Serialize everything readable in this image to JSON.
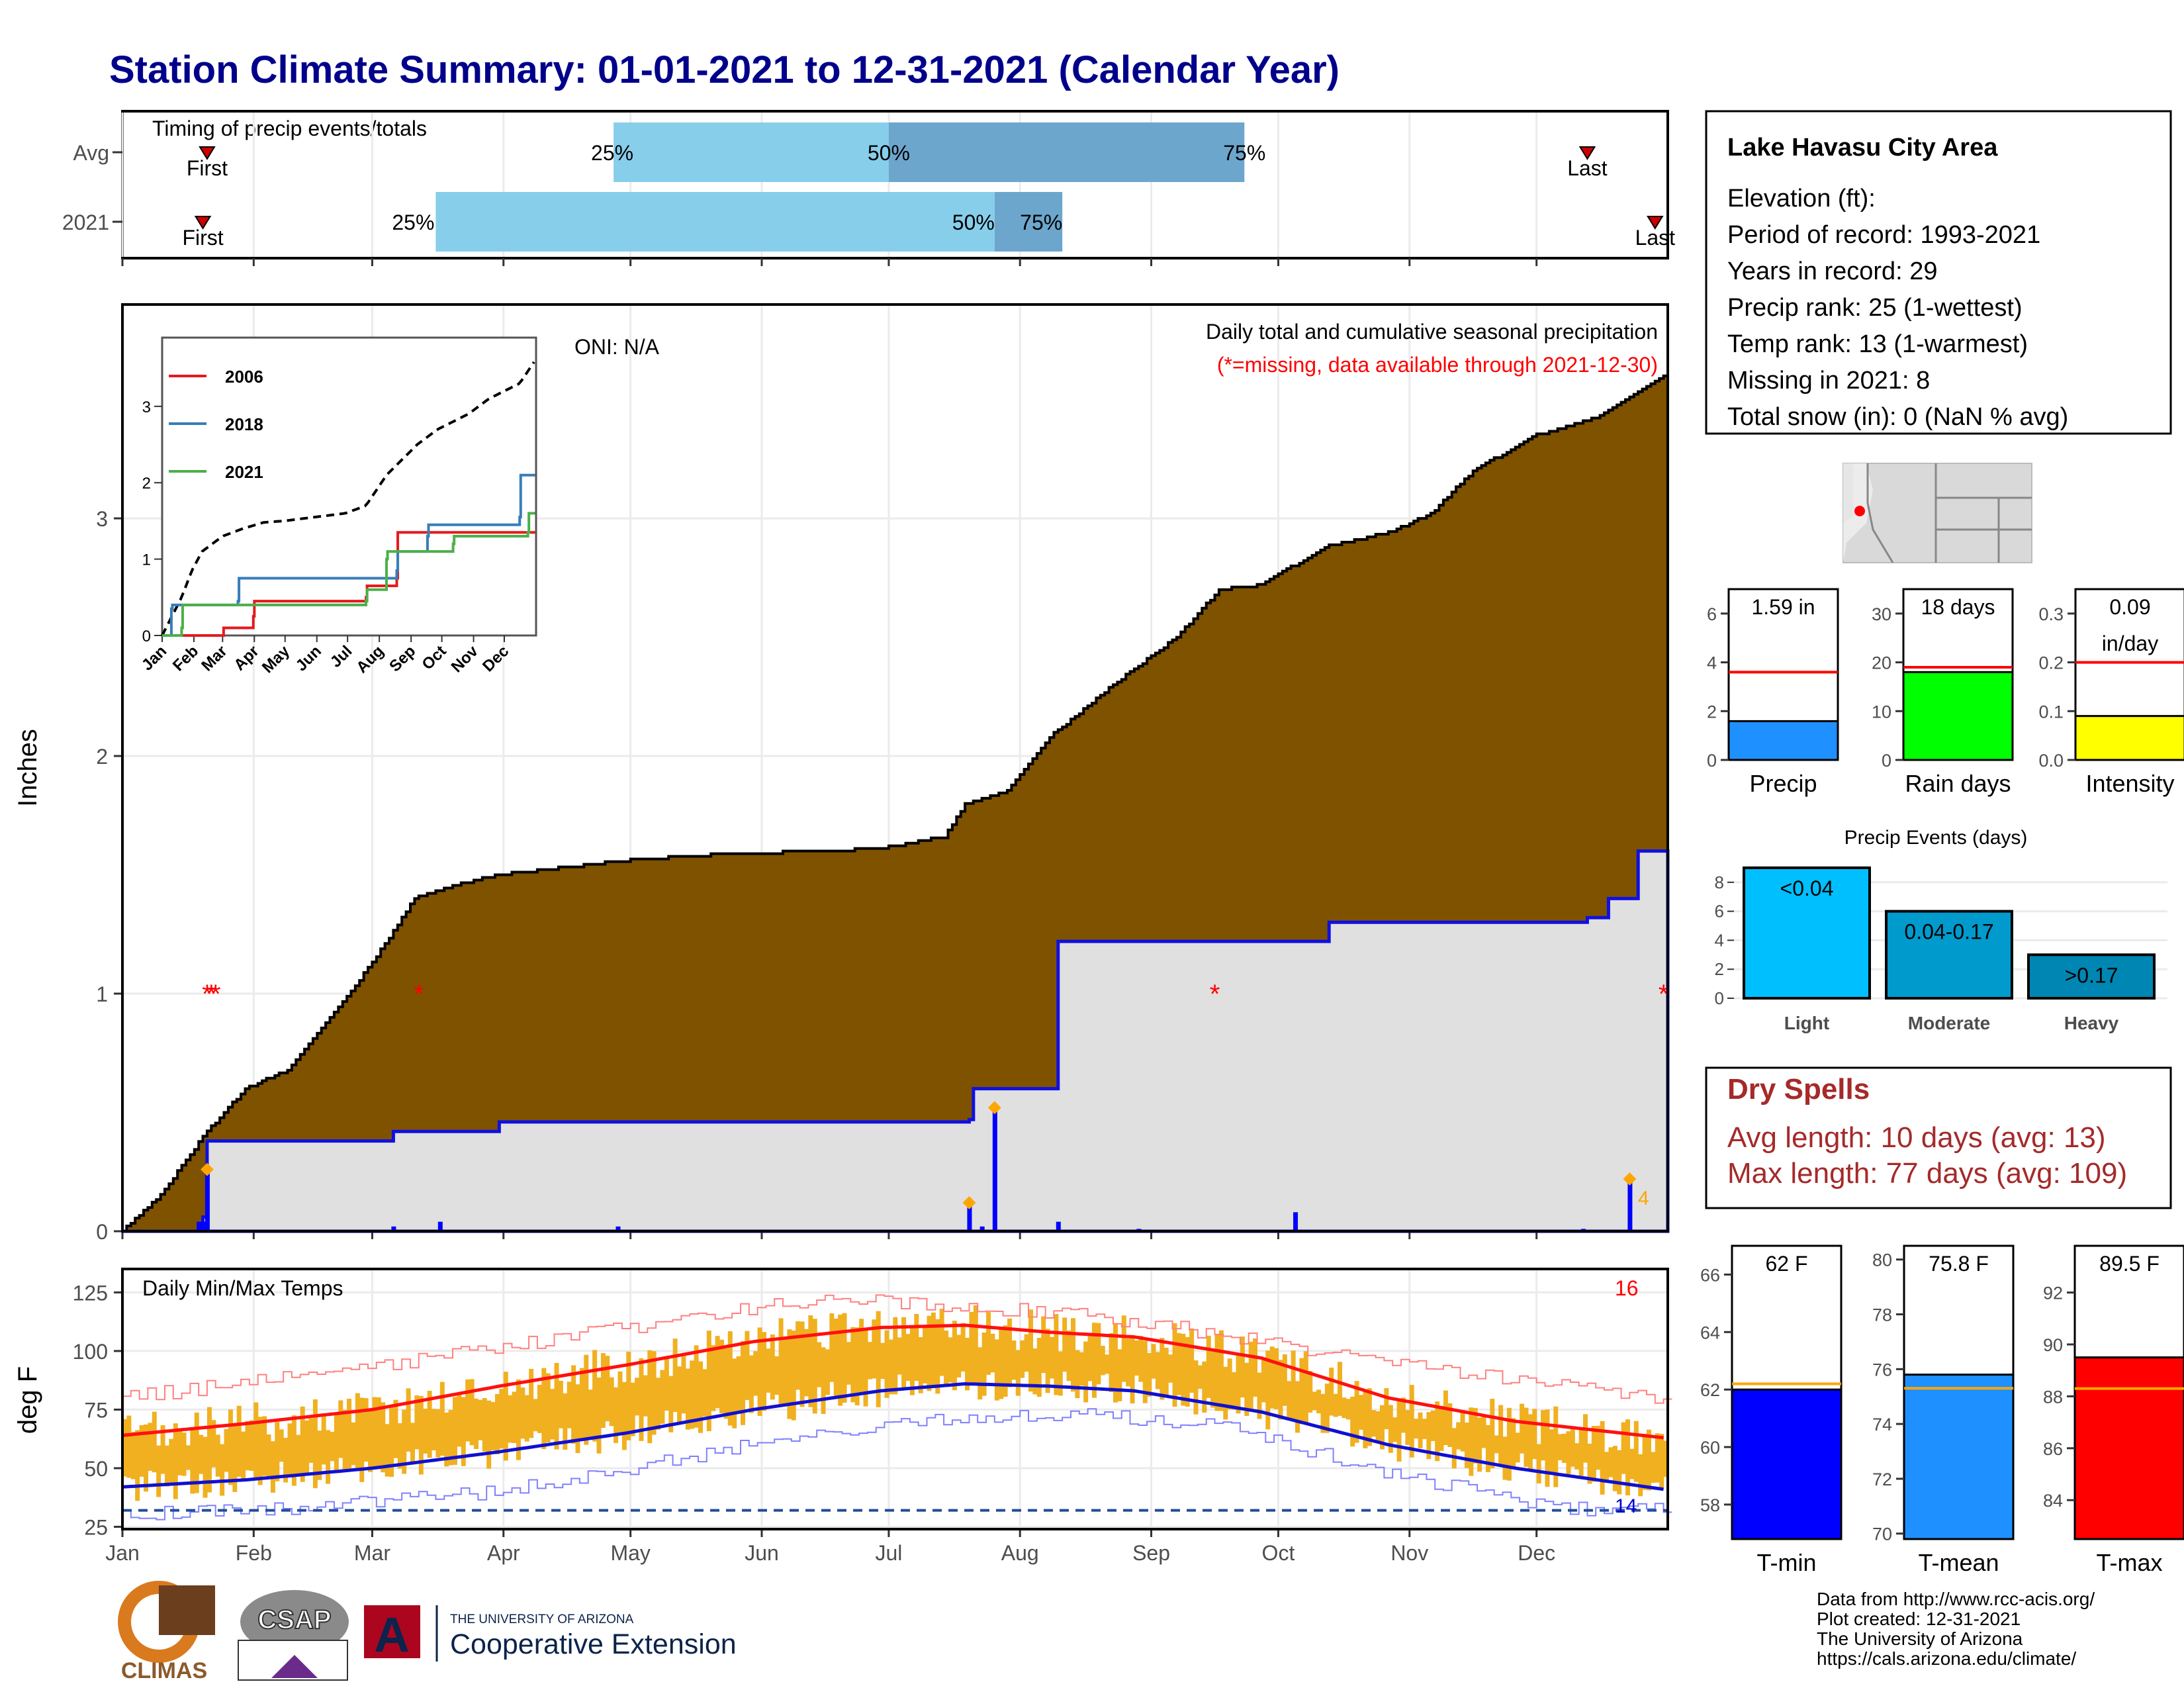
{
  "title": "Station Climate Summary: 01-01-2021 to 12-31-2021 (Calendar Year)",
  "station": {
    "name": "Lake Havasu City Area",
    "lines": [
      "Elevation (ft):",
      "Period of record: 1993-2021",
      "Years in record: 29",
      "Precip rank: 25 (1-wettest)",
      "Temp rank: 13 (1-warmest)",
      "Missing in 2021: 8",
      "Total snow (in): 0 (NaN % avg)"
    ]
  },
  "dry_spells": {
    "title": "Dry Spells",
    "avg": "Avg length: 10 days (avg: 13)",
    "max": "Max length: 77 days (avg: 109)"
  },
  "credits": [
    "Data from http://www.rcc-acis.org/",
    "Plot created: 12-31-2021",
    "The University of Arizona",
    "https://cals.arizona.edu/climate/"
  ],
  "logos": {
    "climas": "CLIMAS",
    "csap": "CSAP",
    "ua_small": "THE UNIVERSITY OF ARIZONA",
    "ua_big": "Cooperative Extension"
  },
  "colors": {
    "precip_fill": "#7F5200",
    "cum_line": "#1010E0",
    "cum_fill": "#E0E0E0",
    "temp_bar": "#F0B020",
    "tmax_line": "#FF1010",
    "tmin_line": "#1010D0"
  },
  "chart_data": [
    {
      "type": "bar",
      "panel": "timing",
      "title": "Timing of precip events/totals",
      "categories": [
        "Avg",
        "2021"
      ],
      "rows": [
        {
          "label": "Avg",
          "first": "Jan 21",
          "p25": "Apr 27",
          "p50": "Jul 1",
          "p75": "Sep 23",
          "last": "Dec 13"
        },
        {
          "label": "2021",
          "first": "Jan 20",
          "p25": "Mar 16",
          "p50": "Jul 26",
          "p75": "Aug 11",
          "last": "Dec 29"
        }
      ],
      "labels": {
        "first": "First",
        "last": "Last",
        "p25": "25%",
        "p50": "50%",
        "p75": "75%"
      }
    },
    {
      "type": "area",
      "panel": "precip",
      "ylabel": "Inches",
      "ylim": [
        0,
        3.9
      ],
      "yticks": [
        0,
        1,
        2,
        3
      ],
      "oni": "ONI: N/A",
      "subtitle": "Daily total and cumulative seasonal precipitation",
      "note": "(*=missing, data available through 2021-12-30)",
      "xticks": [
        "Jan",
        "Feb",
        "Mar",
        "Apr",
        "May",
        "Jun",
        "Jul",
        "Aug",
        "Sep",
        "Oct",
        "Nov",
        "Dec"
      ],
      "avg_cumulative": {
        "name": "",
        "day": [
          1,
          10,
          20,
          30,
          40,
          50,
          60,
          70,
          80,
          90,
          100,
          110,
          120,
          135,
          150,
          165,
          180,
          195,
          200,
          210,
          220,
          235,
          250,
          260,
          270,
          285,
          300,
          310,
          320,
          335,
          350,
          365
        ],
        "value": [
          0,
          0.15,
          0.4,
          0.6,
          0.68,
          0.9,
          1.13,
          1.4,
          1.46,
          1.5,
          1.52,
          1.54,
          1.56,
          1.58,
          1.59,
          1.6,
          1.61,
          1.66,
          1.8,
          1.85,
          2.08,
          2.3,
          2.5,
          2.7,
          2.72,
          2.88,
          2.94,
          3.02,
          3.2,
          3.35,
          3.43,
          3.6
        ]
      },
      "cum_2021": {
        "name": "",
        "day": [
          1,
          20,
          21,
          65,
          90,
          201,
          202,
          222,
          286,
          347,
          352,
          359,
          365
        ],
        "value": [
          0,
          0.06,
          0.38,
          0.42,
          0.46,
          0.47,
          0.6,
          1.22,
          1.3,
          1.32,
          1.4,
          1.6,
          1.6
        ]
      },
      "daily_2021": {
        "day": [
          19,
          20,
          21,
          65,
          76,
          118,
          201,
          204,
          207,
          222,
          241,
          278,
          346,
          357
        ],
        "value": [
          0.04,
          0.04,
          0.26,
          0.02,
          0.04,
          0.02,
          0.12,
          0.02,
          0.52,
          0.04,
          0.01,
          0.08,
          0.01,
          0.22
        ]
      },
      "missing_days": [
        21,
        22,
        23,
        71,
        259,
        365
      ],
      "corner_label": "4"
    },
    {
      "type": "line",
      "panel": "precip-inset",
      "xticks": [
        "Jan",
        "Feb",
        "Mar",
        "Apr",
        "May",
        "Jun",
        "Jul",
        "Aug",
        "Sep",
        "Oct",
        "Nov",
        "Dec"
      ],
      "yticks": [
        0,
        1,
        2,
        3
      ],
      "series": [
        {
          "name": "2006",
          "color": "#E41A1C",
          "day": [
            1,
            60,
            61,
            90,
            91,
            200,
            201,
            230,
            231,
            365
          ],
          "value": [
            0,
            0,
            0.1,
            0.25,
            0.45,
            0.5,
            0.65,
            0.75,
            1.35,
            1.35
          ]
        },
        {
          "name": "2018",
          "color": "#377EB8",
          "day": [
            1,
            10,
            11,
            75,
            76,
            230,
            231,
            260,
            261,
            350,
            351,
            365
          ],
          "value": [
            0,
            0.35,
            0.4,
            0.45,
            0.75,
            0.85,
            1.1,
            1.3,
            1.45,
            1.55,
            2.1,
            2.1
          ]
        },
        {
          "name": "2021",
          "color": "#4DAF4A",
          "day": [
            1,
            20,
            21,
            200,
            201,
            220,
            221,
            285,
            286,
            358,
            359,
            365
          ],
          "value": [
            0,
            0.1,
            0.4,
            0.45,
            0.6,
            1.0,
            1.1,
            1.2,
            1.3,
            1.35,
            1.6,
            1.6
          ]
        }
      ],
      "avg": {
        "day": [
          1,
          20,
          30,
          40,
          60,
          80,
          100,
          120,
          150,
          180,
          200,
          220,
          250,
          270,
          300,
          320,
          350,
          365
        ],
        "value": [
          0,
          0.5,
          0.85,
          1.1,
          1.3,
          1.4,
          1.48,
          1.5,
          1.55,
          1.6,
          1.7,
          2.1,
          2.5,
          2.7,
          2.9,
          3.1,
          3.3,
          3.6
        ]
      }
    },
    {
      "type": "bar",
      "panel": "gauges-precip",
      "gauges": [
        {
          "label": "Precip",
          "value": 1.59,
          "avg": 3.6,
          "ymax": 7,
          "yticks": [
            0,
            2,
            4,
            6
          ],
          "text": "1.59 in",
          "color": "#1E90FF"
        },
        {
          "label": "Rain days",
          "value": 18,
          "avg": 19,
          "ymax": 35,
          "yticks": [
            0,
            10,
            20,
            30
          ],
          "text": "18 days",
          "color": "#00FF00"
        },
        {
          "label": "Intensity",
          "value": 0.09,
          "avg": 0.2,
          "ymax": 0.35,
          "yticks": [
            0.0,
            0.1,
            0.2,
            0.3
          ],
          "text": "0.09\nin/day",
          "color": "#FFFF00"
        }
      ]
    },
    {
      "type": "bar",
      "panel": "precip-events",
      "title": "Precip Events (days)",
      "categories": [
        "Light",
        "Moderate",
        "Heavy"
      ],
      "bar_labels": [
        "<0.04",
        "0.04-0.17",
        ">0.17"
      ],
      "values": [
        9,
        6,
        3
      ],
      "ylim": [
        0,
        9.5
      ],
      "yticks": [
        0,
        2,
        4,
        6,
        8
      ],
      "colors": [
        "#00BFFF",
        "#009ACD",
        "#0086B3"
      ]
    },
    {
      "type": "line",
      "panel": "temps",
      "title": "Daily Min/Max Temps",
      "ylabel": "deg F",
      "ylim": [
        24,
        135
      ],
      "yticks": [
        25,
        50,
        75,
        100,
        125
      ],
      "xticks": [
        "Jan",
        "Feb",
        "Mar",
        "Apr",
        "May",
        "Jun",
        "Jul",
        "Aug",
        "Sep",
        "Oct",
        "Nov",
        "Dec"
      ],
      "tmax_norm": {
        "day": [
          1,
          30,
          60,
          90,
          120,
          150,
          180,
          200,
          220,
          240,
          270,
          300,
          330,
          365
        ],
        "value": [
          64,
          69,
          75,
          85,
          94,
          104,
          110,
          111,
          108,
          106,
          97,
          80,
          70,
          63
        ]
      },
      "tmin_norm": {
        "day": [
          1,
          30,
          60,
          90,
          120,
          150,
          180,
          200,
          220,
          240,
          270,
          300,
          330,
          365
        ],
        "value": [
          42,
          45,
          50,
          57,
          65,
          75,
          83,
          86,
          85,
          83,
          74,
          60,
          50,
          41
        ]
      },
      "rec_max": {
        "day": [
          1,
          60,
          120,
          150,
          170,
          200,
          220,
          250,
          300,
          365
        ],
        "value": [
          80,
          93,
          110,
          118,
          124,
          118,
          117,
          110,
          95,
          80
        ]
      },
      "rec_min": {
        "day": [
          1,
          40,
          90,
          150,
          200,
          230,
          260,
          300,
          340,
          365
        ],
        "value": [
          30,
          33,
          40,
          60,
          72,
          73,
          68,
          48,
          33,
          32
        ]
      },
      "freeze_line": 32,
      "count_high": "16",
      "count_low": "14"
    },
    {
      "type": "bar",
      "panel": "gauges-temp",
      "gauges": [
        {
          "label": "T-min",
          "value": 62,
          "avg": 62.2,
          "ymin": 56.8,
          "ymax": 67,
          "yticks": [
            58,
            60,
            62,
            64,
            66
          ],
          "text": "62 F",
          "color": "#0000FF"
        },
        {
          "label": "T-mean",
          "value": 75.8,
          "avg": 75.3,
          "ymin": 69.8,
          "ymax": 80.5,
          "yticks": [
            70,
            72,
            74,
            76,
            78,
            80
          ],
          "text": "75.8 F",
          "color": "#1E90FF"
        },
        {
          "label": "T-max",
          "value": 89.5,
          "avg": 88.3,
          "ymin": 82.5,
          "ymax": 93.8,
          "yticks": [
            84,
            86,
            88,
            90,
            92
          ],
          "text": "89.5 F",
          "color": "#FF0000"
        }
      ]
    }
  ]
}
